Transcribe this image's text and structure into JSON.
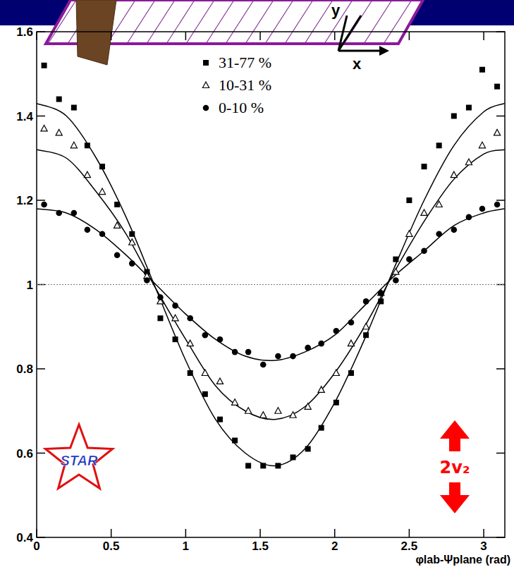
{
  "chart_data": {
    "type": "scatter",
    "xlabel": "φlab-Ψplane (rad)",
    "xlim": [
      0,
      3.1416
    ],
    "ylim": [
      0.4,
      1.6
    ],
    "xticks": [
      0,
      0.5,
      1,
      1.5,
      2,
      2.5,
      3
    ],
    "yticks": [
      0.4,
      0.6,
      0.8,
      1,
      1.2,
      1.4,
      1.6
    ],
    "reference_lines": [
      1
    ],
    "legend": "top",
    "annotations": [
      {
        "text": "2v₂",
        "color": "#ff0000"
      }
    ],
    "logo": "STAR",
    "sketch_labels": [
      "y",
      "x"
    ],
    "series": [
      {
        "name": "31-77 %",
        "marker": "square",
        "color": "#000000",
        "x": [
          0.05,
          0.15,
          0.25,
          0.34,
          0.44,
          0.54,
          0.64,
          0.74,
          0.83,
          0.93,
          1.03,
          1.13,
          1.23,
          1.33,
          1.42,
          1.52,
          1.62,
          1.72,
          1.82,
          1.91,
          2.01,
          2.11,
          2.21,
          2.31,
          2.41,
          2.5,
          2.6,
          2.7,
          2.8,
          2.9,
          2.99,
          3.09
        ],
        "values": [
          1.52,
          1.44,
          1.42,
          1.33,
          1.28,
          1.19,
          1.12,
          1.03,
          0.92,
          0.87,
          0.79,
          0.74,
          0.68,
          0.63,
          0.57,
          0.57,
          0.57,
          0.59,
          0.61,
          0.66,
          0.72,
          0.79,
          0.88,
          0.96,
          1.06,
          1.2,
          1.28,
          1.33,
          1.4,
          1.42,
          1.51,
          1.47
        ]
      },
      {
        "name": "10-31 %",
        "marker": "open-triangle",
        "color": "#000000",
        "x": [
          0.05,
          0.15,
          0.25,
          0.34,
          0.44,
          0.54,
          0.64,
          0.74,
          0.83,
          0.93,
          1.03,
          1.13,
          1.23,
          1.33,
          1.42,
          1.52,
          1.62,
          1.72,
          1.82,
          1.91,
          2.01,
          2.11,
          2.21,
          2.31,
          2.41,
          2.5,
          2.6,
          2.7,
          2.8,
          2.9,
          2.99,
          3.09
        ],
        "values": [
          1.37,
          1.36,
          1.33,
          1.26,
          1.22,
          1.14,
          1.1,
          1.02,
          0.96,
          0.92,
          0.86,
          0.79,
          0.77,
          0.72,
          0.7,
          0.69,
          0.7,
          0.69,
          0.71,
          0.75,
          0.79,
          0.86,
          0.9,
          0.98,
          1.03,
          1.12,
          1.17,
          1.19,
          1.26,
          1.29,
          1.33,
          1.36
        ]
      },
      {
        "name": "0-10 %",
        "marker": "circle",
        "color": "#000000",
        "x": [
          0.05,
          0.15,
          0.25,
          0.34,
          0.44,
          0.54,
          0.64,
          0.74,
          0.83,
          0.93,
          1.03,
          1.13,
          1.23,
          1.33,
          1.42,
          1.52,
          1.62,
          1.72,
          1.82,
          1.91,
          2.01,
          2.11,
          2.21,
          2.31,
          2.41,
          2.5,
          2.6,
          2.7,
          2.8,
          2.9,
          2.99,
          3.09
        ],
        "values": [
          1.19,
          1.17,
          1.17,
          1.13,
          1.12,
          1.07,
          1.05,
          1.01,
          0.97,
          0.95,
          0.92,
          0.88,
          0.87,
          0.84,
          0.84,
          0.81,
          0.83,
          0.83,
          0.85,
          0.86,
          0.89,
          0.91,
          0.96,
          0.98,
          1.01,
          1.06,
          1.08,
          1.12,
          1.13,
          1.16,
          1.18,
          1.19
        ]
      },
      {
        "type": "line",
        "color": "#000000",
        "x": [
          0,
          0.2,
          0.4,
          0.6,
          0.8,
          1,
          1.2,
          1.4,
          1.6,
          1.8,
          2,
          2.2,
          2.4,
          2.6,
          2.8,
          3,
          3.14
        ],
        "values": [
          1.43,
          1.4,
          1.3,
          1.16,
          0.99,
          0.82,
          0.68,
          0.6,
          0.57,
          0.61,
          0.72,
          0.87,
          1.04,
          1.2,
          1.33,
          1.41,
          1.43
        ]
      },
      {
        "type": "line",
        "color": "#000000",
        "x": [
          0,
          0.2,
          0.4,
          0.6,
          0.8,
          1,
          1.2,
          1.4,
          1.6,
          1.8,
          2,
          2.2,
          2.4,
          2.6,
          2.8,
          3,
          3.14
        ],
        "values": [
          1.32,
          1.3,
          1.22,
          1.12,
          0.99,
          0.87,
          0.76,
          0.7,
          0.68,
          0.71,
          0.79,
          0.9,
          1.03,
          1.15,
          1.25,
          1.31,
          1.32
        ]
      },
      {
        "type": "line",
        "color": "#000000",
        "x": [
          0,
          0.2,
          0.4,
          0.6,
          0.8,
          1,
          1.2,
          1.4,
          1.6,
          1.8,
          2,
          2.2,
          2.4,
          2.6,
          2.8,
          3,
          3.14
        ],
        "values": [
          1.18,
          1.17,
          1.13,
          1.07,
          1,
          0.93,
          0.87,
          0.83,
          0.82,
          0.84,
          0.88,
          0.95,
          1.02,
          1.08,
          1.14,
          1.17,
          1.18
        ]
      }
    ]
  }
}
